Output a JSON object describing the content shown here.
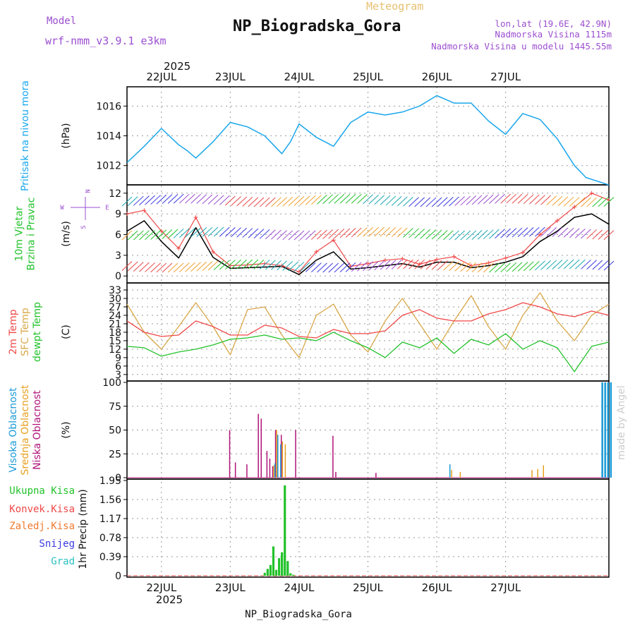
{
  "colors": {
    "pressure": "#1aa7ec",
    "temp2m": "#f04848",
    "sfc": "#d9a84a",
    "dew": "#22c22a",
    "low_cloud": "#b0147a",
    "mid_cloud": "#e8a020",
    "high_cloud": "#1a9ad6",
    "precip": "#22c22a",
    "purple": "#9b4fd0",
    "wind_speed": "#000000",
    "gust": "#f04848"
  },
  "header": {
    "title": "NP_Biogradska_Gora",
    "subtitle": "Meteogram",
    "model_label": "Model",
    "model_value": "wrf-nmm_v3.9.1 e3km",
    "info1": "lon,lat (19.6E, 42.9N)",
    "info2": "Nadmorska Visina 1115m",
    "info3": "Nadmorska Visina u modelu 1445.55m",
    "year": "2025"
  },
  "footer": {
    "station": "NP_Biogradska_Gora",
    "year": "2025",
    "watermark": "made by Angel"
  },
  "xaxis": {
    "dates": [
      "22JUL",
      "23JUL",
      "24JUL",
      "25JUL",
      "26JUL",
      "27JUL"
    ]
  },
  "compass": [
    "N",
    "E",
    "S",
    "W"
  ],
  "chart_data": [
    {
      "type": "line",
      "id": "pressure",
      "ylabel": "(hPa)",
      "side_labels": [
        "Pritisak na nivou mora"
      ],
      "yticks": [
        "1012",
        "1014",
        "1016"
      ],
      "ylim": [
        1010.8,
        1017.2
      ],
      "series": [
        {
          "name": "Pritisak na nivou mora",
          "x_hours": [
            0,
            6,
            12,
            18,
            21,
            24,
            30,
            36,
            42,
            48,
            54,
            57,
            60,
            66,
            72,
            78,
            84,
            90,
            96,
            102,
            108,
            114,
            120,
            126,
            132,
            138,
            144,
            150,
            156,
            160,
            168
          ],
          "values": [
            1012.2,
            1013.3,
            1014.5,
            1013.4,
            1013.0,
            1012.5,
            1013.6,
            1014.9,
            1014.6,
            1014.0,
            1012.8,
            1013.6,
            1014.8,
            1013.9,
            1013.3,
            1014.9,
            1015.6,
            1015.4,
            1015.6,
            1016.0,
            1016.7,
            1016.2,
            1016.2,
            1015.0,
            1014.1,
            1015.5,
            1015.1,
            1013.8,
            1012.0,
            1011.2,
            1010.7
          ]
        }
      ]
    },
    {
      "type": "line",
      "id": "wind",
      "ylabel": "(m/s)",
      "side_labels": [
        "10m Vjetar",
        "Brzina i Pravac"
      ],
      "yticks": [
        "0",
        "3",
        "6",
        "9",
        "12"
      ],
      "ylim": [
        -0.8,
        13
      ],
      "series": [
        {
          "name": "Brzina vjetra",
          "x_hours": [
            0,
            6,
            12,
            18,
            24,
            30,
            36,
            42,
            48,
            54,
            60,
            66,
            72,
            78,
            84,
            90,
            96,
            102,
            108,
            114,
            120,
            126,
            132,
            138,
            144,
            150,
            156,
            162,
            168
          ],
          "values": [
            6.5,
            8.0,
            5.0,
            2.6,
            7.0,
            2.7,
            1.1,
            1.2,
            1.3,
            1.4,
            0.2,
            2.3,
            3.5,
            1.0,
            1.2,
            1.5,
            1.8,
            1.3,
            2.0,
            2.0,
            1.2,
            1.5,
            2.0,
            2.8,
            5.0,
            6.5,
            8.5,
            9.0,
            7.5
          ]
        },
        {
          "name": "Udari vjetra",
          "x_hours": [
            0,
            6,
            12,
            18,
            24,
            30,
            36,
            42,
            48,
            54,
            60,
            66,
            72,
            78,
            84,
            90,
            96,
            102,
            108,
            114,
            120,
            126,
            132,
            138,
            144,
            150,
            156,
            162,
            168
          ],
          "values": [
            9.0,
            9.5,
            6.5,
            4.0,
            8.5,
            3.5,
            1.5,
            1.6,
            1.8,
            1.5,
            0.6,
            3.5,
            5.2,
            1.4,
            1.8,
            2.3,
            2.5,
            1.7,
            2.4,
            2.8,
            1.5,
            1.9,
            2.6,
            3.4,
            6.0,
            8.0,
            10.0,
            12.0,
            11.0
          ]
        }
      ]
    },
    {
      "type": "line",
      "id": "temperature",
      "ylabel": "(C)",
      "side_labels": [
        "2m Temp",
        "SFC Temp",
        "dewpt Temp"
      ],
      "yticks": [
        "3",
        "6",
        "9",
        "12",
        "15",
        "18",
        "21",
        "24",
        "27",
        "30",
        "33"
      ],
      "ylim": [
        1.2,
        35
      ],
      "series": [
        {
          "name": "2m Temp",
          "x_hours": [
            0,
            6,
            12,
            18,
            24,
            30,
            36,
            42,
            48,
            54,
            60,
            66,
            72,
            78,
            84,
            90,
            96,
            102,
            108,
            114,
            120,
            126,
            132,
            138,
            144,
            150,
            156,
            162,
            168
          ],
          "values": [
            22.0,
            18.0,
            16.5,
            17.0,
            22.0,
            20.0,
            17.0,
            17.0,
            20.5,
            19.5,
            16.5,
            16.0,
            19.0,
            17.5,
            17.5,
            18.5,
            24.0,
            26.0,
            23.0,
            22.0,
            22.0,
            24.5,
            26.0,
            28.5,
            27.0,
            24.5,
            23.5,
            25.5,
            24.0
          ]
        },
        {
          "name": "SFC Temp",
          "x_hours": [
            0,
            6,
            12,
            18,
            24,
            30,
            36,
            42,
            48,
            54,
            60,
            66,
            72,
            78,
            84,
            90,
            96,
            102,
            108,
            114,
            120,
            126,
            132,
            138,
            144,
            150,
            156,
            162,
            168
          ],
          "values": [
            28.0,
            18.0,
            12.0,
            20.0,
            28.5,
            20.0,
            10.0,
            26.0,
            27.0,
            17.0,
            9.0,
            24.0,
            28.0,
            17.0,
            11.0,
            22.0,
            30.0,
            21.0,
            12.0,
            22.0,
            31.0,
            20.0,
            12.0,
            24.0,
            32.0,
            22.0,
            15.0,
            24.0,
            28.0
          ]
        },
        {
          "name": "dewpt Temp",
          "x_hours": [
            0,
            6,
            12,
            18,
            24,
            30,
            36,
            42,
            48,
            54,
            60,
            66,
            72,
            78,
            84,
            90,
            96,
            102,
            108,
            114,
            120,
            126,
            132,
            138,
            144,
            150,
            156,
            162,
            168
          ],
          "values": [
            13.0,
            12.5,
            9.5,
            11.0,
            12.0,
            13.5,
            15.5,
            16.0,
            17.0,
            15.5,
            16.0,
            15.0,
            18.0,
            15.0,
            12.5,
            9.0,
            14.5,
            12.5,
            16.0,
            10.5,
            15.5,
            13.5,
            17.5,
            12.0,
            15.0,
            12.5,
            4.0,
            13.0,
            14.5
          ]
        }
      ]
    },
    {
      "type": "bar",
      "id": "cloud",
      "ylabel": "(%)",
      "side_labels": [
        "Visoka Oblacnost",
        "Srednja Oblacnost",
        "Niska Oblacnost"
      ],
      "yticks": [
        "0",
        "25",
        "50",
        "75",
        "100"
      ],
      "ylim": [
        0,
        100
      ],
      "series": [
        {
          "name": "Niska Oblacnost",
          "x_hours": [
            36,
            38,
            42,
            46,
            47,
            49,
            50,
            51,
            52,
            54,
            59,
            72,
            73,
            87
          ],
          "values": [
            50,
            16,
            14,
            67,
            62,
            28,
            20,
            12,
            50,
            45,
            50,
            44,
            6,
            5
          ]
        },
        {
          "name": "Srednja Oblacnost",
          "x_hours": [
            51,
            52,
            54,
            55,
            113,
            116,
            141,
            143,
            145
          ],
          "values": [
            13,
            50,
            38,
            35,
            8,
            6,
            8,
            9,
            13
          ]
        },
        {
          "name": "Visoka Oblacnost",
          "x_hours": [
            51,
            52,
            53,
            112,
            165,
            166,
            167,
            168
          ],
          "values": [
            15,
            45,
            35,
            14,
            100,
            100,
            100,
            100
          ]
        }
      ]
    },
    {
      "type": "bar",
      "id": "precip",
      "ylabel": "1hr Precip (mm)",
      "side_labels": [
        "Ukupna Kisa",
        "Konvek.Kisa",
        "Zaledj.Kisa",
        "Snijeg",
        "Grad"
      ],
      "yticks": [
        "0",
        "0.39",
        "0.78",
        "1.17",
        "1.56",
        "1.95"
      ],
      "ylim": [
        0,
        1.95
      ],
      "series": [
        {
          "name": "Ukupna Kisa",
          "x_hours": [
            48,
            49,
            50,
            51,
            52,
            53,
            54,
            55,
            56,
            57,
            58
          ],
          "values": [
            0.06,
            0.14,
            0.22,
            0.6,
            0.12,
            0.36,
            0.48,
            1.85,
            0.3,
            0.05,
            0.02
          ]
        }
      ]
    }
  ]
}
